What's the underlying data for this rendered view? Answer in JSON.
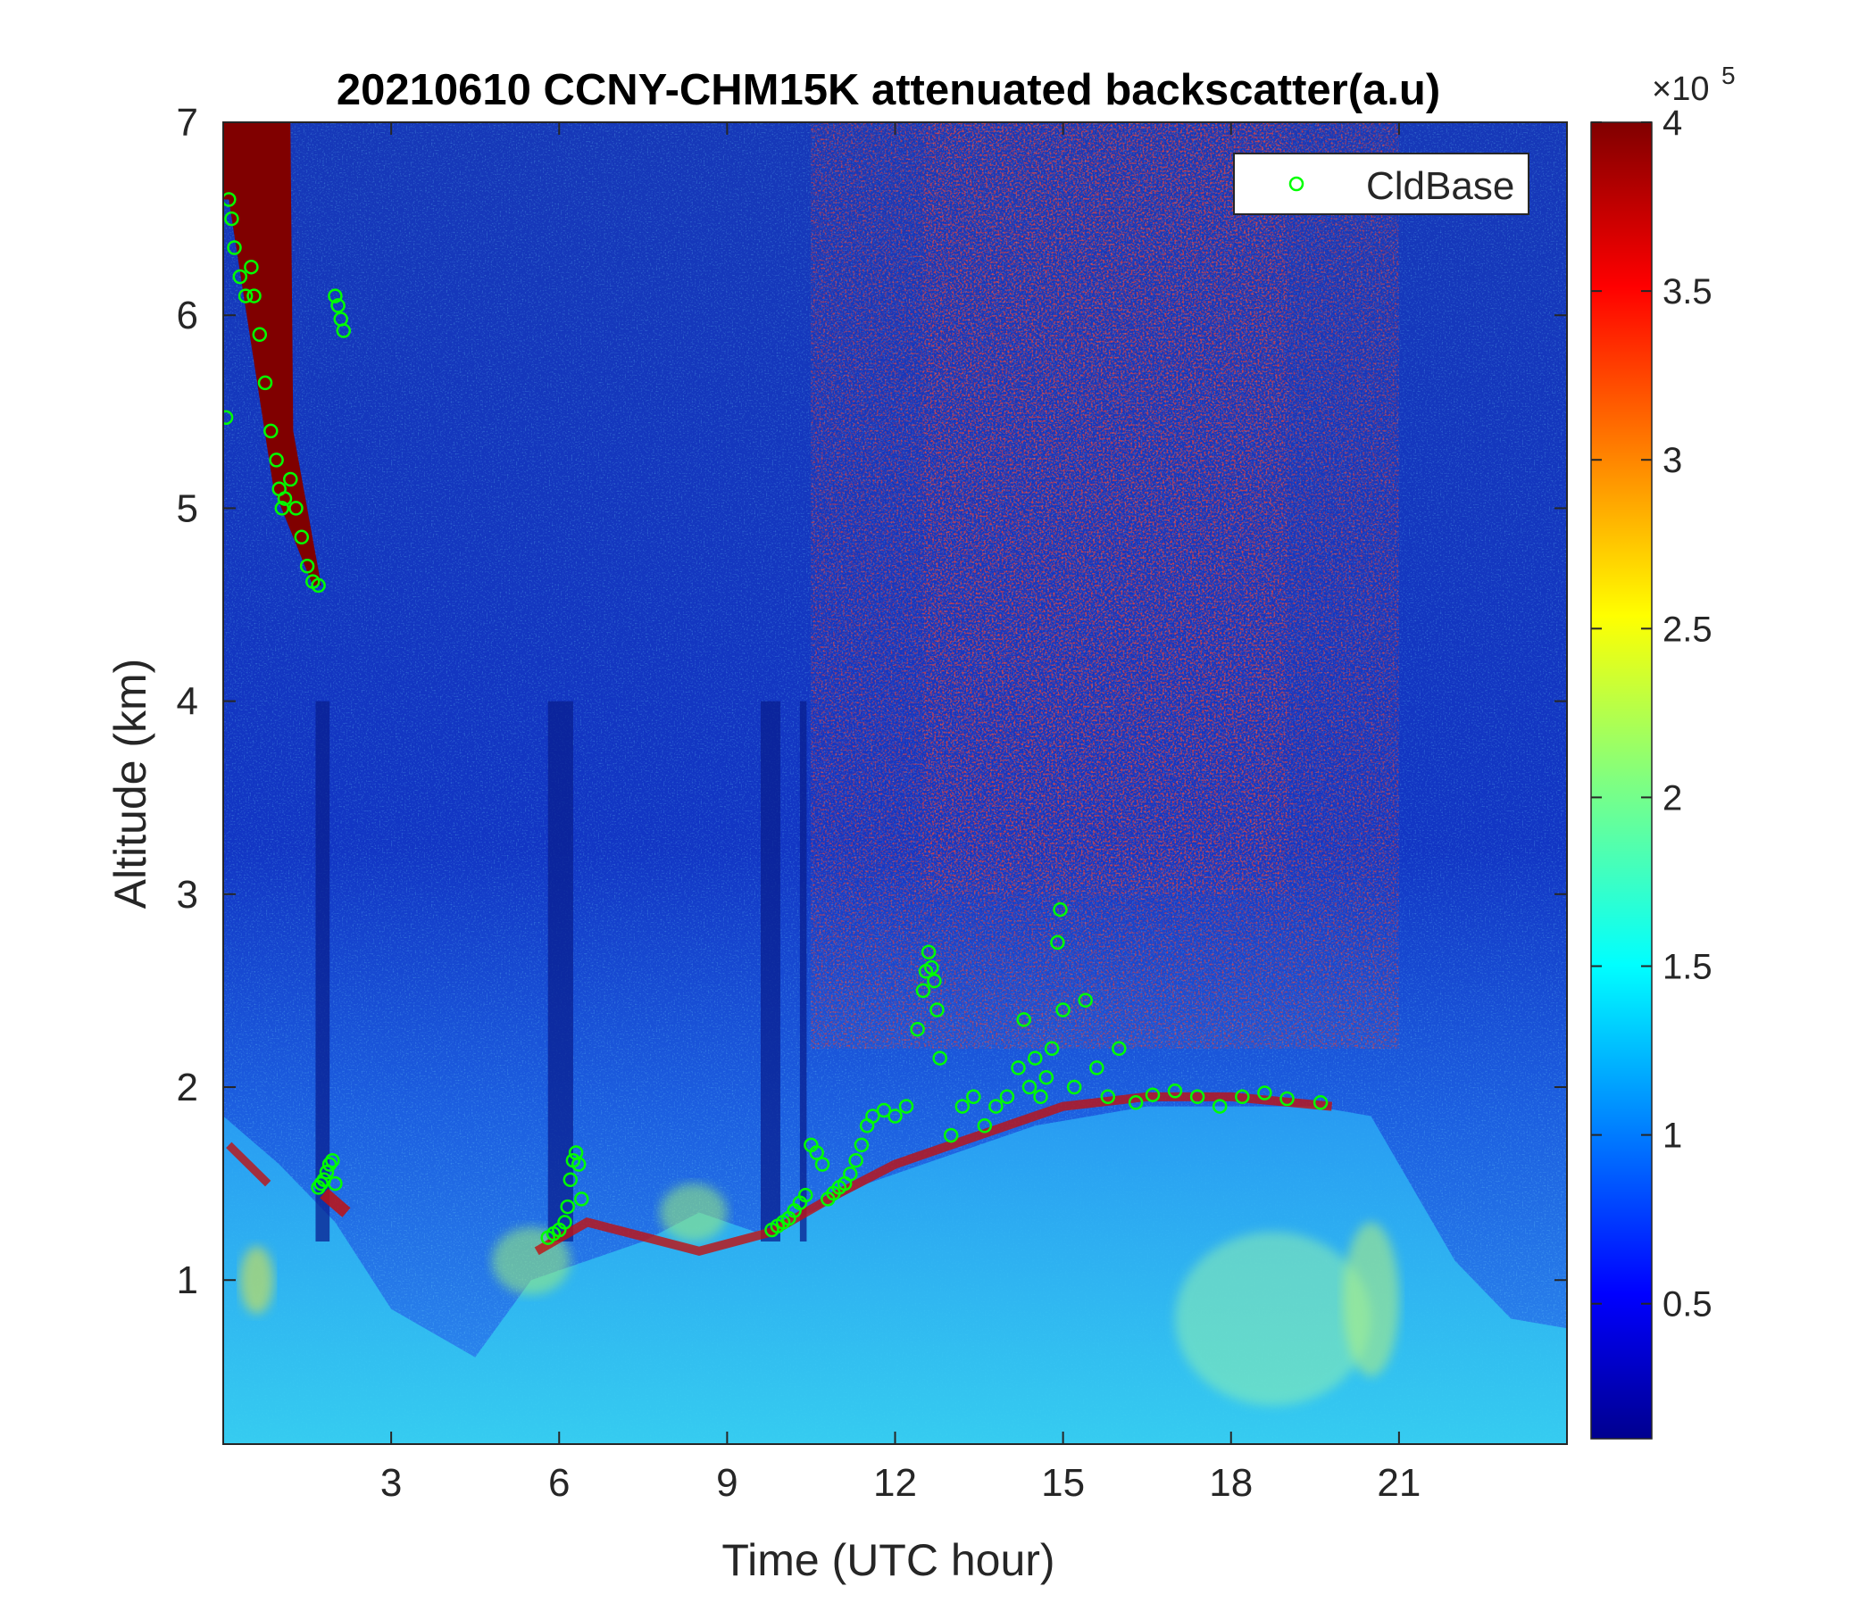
{
  "chart_data": {
    "type": "heatmap",
    "title": "20210610 CCNY-CHM15K attenuated backscatter(a.u)",
    "xlabel": "Time (UTC hour)",
    "ylabel": "Altitude (km)",
    "xlim": [
      0,
      24
    ],
    "ylim": [
      0.15,
      7
    ],
    "x_ticks": [
      3,
      6,
      9,
      12,
      15,
      18,
      21
    ],
    "x_tick_labels": [
      "3",
      "6",
      "9",
      "12",
      "15",
      "18",
      "21"
    ],
    "y_ticks": [
      1,
      2,
      3,
      4,
      5,
      6,
      7
    ],
    "y_tick_labels": [
      "1",
      "2",
      "3",
      "4",
      "5",
      "6",
      "7"
    ],
    "grid": false,
    "colormap": "jet",
    "colorbar": {
      "min": 0.1,
      "max": 4,
      "ticks": [
        0.5,
        1,
        1.5,
        2,
        2.5,
        3,
        3.5,
        4
      ],
      "tick_labels": [
        "0.5",
        "1",
        "1.5",
        "2",
        "2.5",
        "3",
        "3.5",
        "4"
      ],
      "exponent_label": "×10",
      "exponent": "5"
    },
    "legend": {
      "position": "top-right",
      "entries": [
        "CldBase"
      ]
    },
    "marker_color": "#00ff00",
    "series": [
      {
        "name": "CldBase",
        "marker": "circle",
        "x": [
          0.05,
          0.1,
          0.15,
          0.2,
          0.3,
          0.4,
          0.5,
          0.55,
          0.65,
          0.75,
          0.85,
          0.95,
          1.0,
          1.05,
          1.1,
          1.2,
          1.3,
          1.4,
          1.5,
          1.6,
          1.7,
          2.0,
          2.05,
          2.1,
          2.15,
          1.7,
          1.75,
          1.8,
          1.85,
          1.9,
          1.95,
          2.0,
          5.8,
          5.9,
          6.0,
          6.1,
          6.15,
          6.2,
          6.25,
          6.3,
          6.35,
          6.4,
          9.8,
          9.9,
          10.0,
          10.1,
          10.2,
          10.3,
          10.4,
          10.5,
          10.6,
          10.7,
          10.8,
          10.9,
          11.0,
          11.1,
          11.2,
          11.3,
          11.4,
          11.5,
          11.6,
          11.8,
          12.0,
          12.2,
          12.4,
          12.5,
          12.55,
          12.6,
          12.65,
          12.7,
          12.75,
          12.8,
          13.0,
          13.2,
          13.4,
          13.6,
          13.8,
          14.0,
          14.2,
          14.3,
          14.4,
          14.5,
          14.6,
          14.7,
          14.8,
          14.9,
          14.95,
          15.0,
          15.2,
          15.4,
          15.6,
          15.8,
          16.0,
          16.3,
          16.6,
          17.0,
          17.4,
          17.8,
          18.2,
          18.6,
          19.0,
          19.6
        ],
        "y": [
          5.47,
          6.6,
          6.5,
          6.35,
          6.2,
          6.1,
          6.25,
          6.1,
          5.9,
          5.65,
          5.4,
          5.25,
          5.1,
          5.0,
          5.05,
          5.15,
          5.0,
          4.85,
          4.7,
          4.62,
          4.6,
          6.1,
          6.05,
          5.98,
          5.92,
          1.48,
          1.5,
          1.52,
          1.56,
          1.6,
          1.62,
          1.5,
          1.22,
          1.24,
          1.26,
          1.3,
          1.38,
          1.52,
          1.62,
          1.66,
          1.6,
          1.42,
          1.26,
          1.28,
          1.3,
          1.32,
          1.36,
          1.4,
          1.44,
          1.7,
          1.66,
          1.6,
          1.42,
          1.45,
          1.48,
          1.5,
          1.55,
          1.62,
          1.7,
          1.8,
          1.85,
          1.88,
          1.85,
          1.9,
          2.3,
          2.5,
          2.6,
          2.7,
          2.62,
          2.55,
          2.4,
          2.15,
          1.75,
          1.9,
          1.95,
          1.8,
          1.9,
          1.95,
          2.1,
          2.35,
          2.0,
          2.15,
          1.95,
          2.05,
          2.2,
          2.75,
          2.92,
          2.4,
          2.0,
          2.45,
          2.1,
          1.95,
          2.2,
          1.92,
          1.96,
          1.98,
          1.95,
          1.9,
          1.95,
          1.97,
          1.94,
          1.92
        ]
      }
    ]
  }
}
